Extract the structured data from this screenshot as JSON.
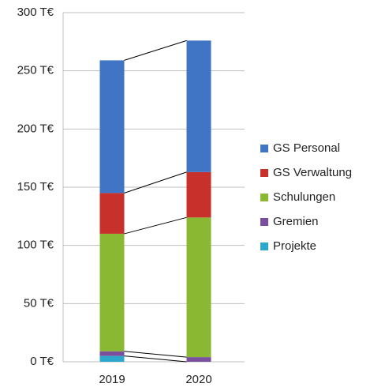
{
  "chart_data": {
    "type": "stacked_bar",
    "categories": [
      "2019",
      "2020"
    ],
    "series": [
      {
        "name": "GS Personal",
        "color": "#3f75c4",
        "values": [
          114,
          113
        ]
      },
      {
        "name": "GS Verwaltung",
        "color": "#c8302c",
        "values": [
          35,
          39
        ]
      },
      {
        "name": "Schulungen",
        "color": "#8bb833",
        "values": [
          101,
          120
        ]
      },
      {
        "name": "Gremien",
        "color": "#7a4f9e",
        "values": [
          4,
          4
        ]
      },
      {
        "name": "Projekte",
        "color": "#2ea7cc",
        "values": [
          5,
          0
        ]
      }
    ],
    "ylim": [
      0,
      300
    ],
    "yticks": [
      {
        "value": 0,
        "label": "0 T€"
      },
      {
        "value": 50,
        "label": "50 T€"
      },
      {
        "value": 100,
        "label": "100 T€"
      },
      {
        "value": 150,
        "label": "150 T€"
      },
      {
        "value": 200,
        "label": "200 T€"
      },
      {
        "value": 250,
        "label": "250 T€"
      },
      {
        "value": 300,
        "label": "300 T€"
      }
    ],
    "grid": true,
    "legend": "right"
  }
}
